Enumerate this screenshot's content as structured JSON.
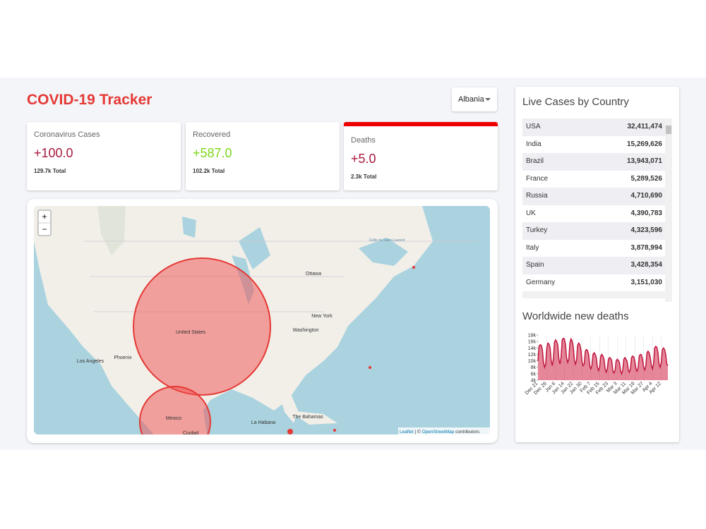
{
  "header": {
    "title": "COVID-19 Tracker",
    "country_select": "Albania"
  },
  "cards": [
    {
      "title": "Coronavirus Cases",
      "value": "+100.0",
      "total": "129.7k Total"
    },
    {
      "title": "Recovered",
      "value": "+587.0",
      "total": "102.2k Total"
    },
    {
      "title": "Deaths",
      "value": "+5.0",
      "total": "2.3k Total"
    }
  ],
  "map": {
    "zoom_in": "+",
    "zoom_out": "−",
    "labels": [
      "Ottawa",
      "New York",
      "Washington",
      "United States",
      "Phoenix",
      "Los Angeles",
      "Mexico",
      "Ciudad",
      "La Habana",
      "The Bahamas",
      "Golfe du Saint-Laurent"
    ],
    "attribution": {
      "leaflet": "Leaflet",
      "separator": "| ©",
      "osm": "OpenStreetMap",
      "contributors": "contributors"
    }
  },
  "sidebar": {
    "table_title": "Live Cases by Country",
    "table": {
      "rows": [
        [
          "USA",
          "32,411,474"
        ],
        [
          "India",
          "15,269,626"
        ],
        [
          "Brazil",
          "13,943,071"
        ],
        [
          "France",
          "5,289,526"
        ],
        [
          "Russia",
          "4,710,690"
        ],
        [
          "UK",
          "4,390,783"
        ],
        [
          "Turkey",
          "4,323,596"
        ],
        [
          "Italy",
          "3,878,994"
        ],
        [
          "Spain",
          "3,428,354"
        ],
        [
          "Germany",
          "3,151,030"
        ]
      ]
    },
    "chart_title": "Worldwide new deaths"
  },
  "chart_data": {
    "type": "area",
    "color": "#c0163f",
    "fill": "rgba(204,16,52,0.5)",
    "ylim": [
      4000,
      18000
    ],
    "yticks": [
      {
        "value": 4000,
        "label": "4k"
      },
      {
        "value": 6000,
        "label": "6k"
      },
      {
        "value": 8000,
        "label": "8k"
      },
      {
        "value": 10000,
        "label": "10k"
      },
      {
        "value": 12000,
        "label": "12k"
      },
      {
        "value": 14000,
        "label": "14k"
      },
      {
        "value": 16000,
        "label": "16k"
      },
      {
        "value": 18000,
        "label": "18k"
      }
    ],
    "categories": [
      "Dec 21",
      null,
      null,
      null,
      null,
      null,
      null,
      null,
      "Dec 29",
      null,
      null,
      null,
      null,
      null,
      null,
      null,
      "Jan 6",
      null,
      null,
      null,
      null,
      null,
      null,
      null,
      "Jan 14",
      null,
      null,
      null,
      null,
      null,
      null,
      null,
      "Jan 22",
      null,
      null,
      null,
      null,
      null,
      null,
      null,
      "Jan 30",
      null,
      null,
      null,
      null,
      null,
      null,
      null,
      "Feb 7",
      null,
      null,
      null,
      null,
      null,
      null,
      null,
      "Feb 15",
      null,
      null,
      null,
      null,
      null,
      null,
      null,
      "Feb 23",
      null,
      null,
      null,
      null,
      null,
      null,
      null,
      "Mar 3",
      null,
      null,
      null,
      null,
      null,
      null,
      null,
      "Mar 11",
      null,
      null,
      null,
      null,
      null,
      null,
      null,
      "Mar 19",
      null,
      null,
      null,
      null,
      null,
      null,
      null,
      "Mar 27",
      null,
      null,
      null,
      null,
      null,
      null,
      null,
      "Apr 4",
      null,
      null,
      null,
      null,
      null,
      null,
      null,
      "Apr 12",
      null,
      null,
      null,
      null,
      null,
      null
    ],
    "values": [
      10000,
      14500,
      15000,
      14800,
      13500,
      9500,
      8000,
      9000,
      14000,
      15500,
      15200,
      14000,
      10000,
      8500,
      10500,
      15800,
      16500,
      16000,
      14800,
      10500,
      9000,
      11000,
      16500,
      17000,
      16800,
      15000,
      11000,
      9500,
      10500,
      15500,
      16800,
      16200,
      14500,
      10500,
      9000,
      10000,
      14800,
      15500,
      15000,
      13500,
      9800,
      8500,
      9000,
      13000,
      13500,
      13200,
      12000,
      8500,
      7500,
      8500,
      12000,
      12500,
      12000,
      11000,
      8000,
      7000,
      8000,
      11500,
      12000,
      11500,
      10500,
      7500,
      6500,
      7500,
      10500,
      11000,
      10800,
      10000,
      7000,
      6200,
      7000,
      10000,
      10500,
      10200,
      9500,
      7000,
      6000,
      7200,
      10500,
      11000,
      10500,
      9800,
      7200,
      6500,
      7500,
      11000,
      11500,
      11200,
      10000,
      7500,
      6800,
      8000,
      11500,
      12000,
      11800,
      10500,
      8000,
      7200,
      8500,
      12500,
      13000,
      12500,
      11000,
      8500,
      7500,
      9000,
      14000,
      14500,
      14200,
      12500,
      9000,
      8000,
      9500,
      13500,
      14000,
      13500,
      12000,
      9000,
      8500
    ]
  }
}
